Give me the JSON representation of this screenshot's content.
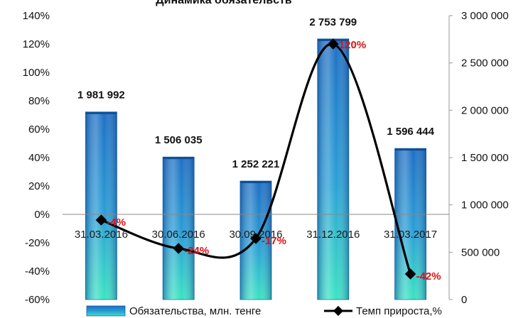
{
  "chart_data": {
    "type": "bar",
    "title": "Динамика обязательств",
    "categories": [
      "31.03.2016",
      "30.06.2016",
      "30.09.2016",
      "31.12.2016",
      "31.03.2017"
    ],
    "series": [
      {
        "name": "Обязательства, млн. тенге",
        "type": "bar",
        "axis": "right",
        "values": [
          1981992,
          1506035,
          1252221,
          2753799,
          1596444
        ],
        "labels": [
          "1 981 992",
          "1 506 035",
          "1 252 221",
          "2 753 799",
          "1 596 444"
        ]
      },
      {
        "name": "Темп прироста,%",
        "type": "line",
        "axis": "left",
        "values": [
          -4,
          -24,
          -17,
          120,
          -42
        ],
        "labels": [
          "-4%",
          "-24%",
          "-17%",
          "120%",
          "-42%"
        ]
      }
    ],
    "left_axis": {
      "ylim": [
        -60,
        140
      ],
      "ticks": [
        -60,
        -40,
        -20,
        0,
        20,
        40,
        60,
        80,
        100,
        120,
        140
      ],
      "tick_labels": [
        "-60%",
        "-40%",
        "-20%",
        "0%",
        "20%",
        "40%",
        "60%",
        "80%",
        "100%",
        "120%",
        "140%"
      ]
    },
    "right_axis": {
      "ylim": [
        0,
        3000000
      ],
      "ticks": [
        0,
        500000,
        1000000,
        1500000,
        2000000,
        2500000,
        3000000
      ],
      "tick_labels": [
        "0",
        "500 000",
        "1 000 000",
        "1 500 000",
        "2 000 000",
        "2 500 000",
        "3 000 000"
      ]
    },
    "legend_position": "bottom",
    "grid": false,
    "colors": {
      "bar_top": "#1e6fc4",
      "bar_bottom": "#38e0c0",
      "line": "#000000",
      "rate_label": "#e01010"
    }
  }
}
